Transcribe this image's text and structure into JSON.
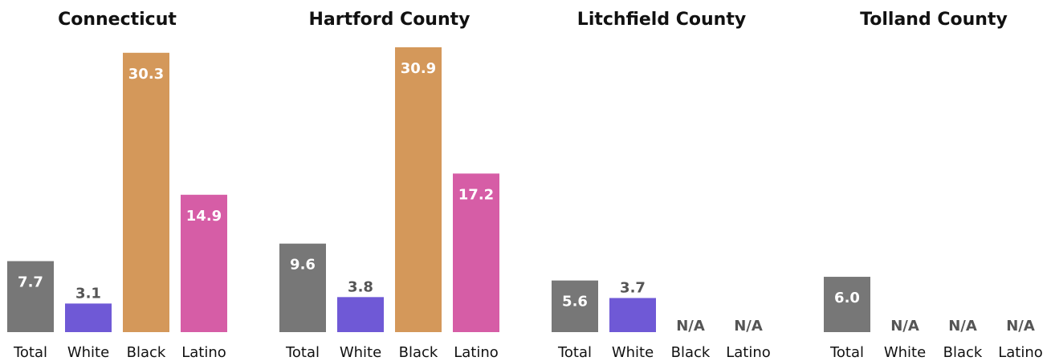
{
  "colors": {
    "Total": "#777777",
    "White": "#6f59d6",
    "Black": "#d4985a",
    "Latino": "#d65da6"
  },
  "chart_data": {
    "type": "bar",
    "categories": [
      "Total",
      "White",
      "Black",
      "Latino"
    ],
    "ylim": [
      0,
      31.5
    ],
    "panels": [
      {
        "title": "Connecticut",
        "values": [
          7.7,
          3.1,
          30.3,
          14.9
        ],
        "labels": [
          "7.7",
          "3.1",
          "30.3",
          "14.9"
        ]
      },
      {
        "title": "Hartford County",
        "values": [
          9.6,
          3.8,
          30.9,
          17.2
        ],
        "labels": [
          "9.6",
          "3.8",
          "30.9",
          "17.2"
        ]
      },
      {
        "title": "Litchfield County",
        "values": [
          5.6,
          3.7,
          null,
          null
        ],
        "labels": [
          "5.6",
          "3.7",
          "N/A",
          "N/A"
        ]
      },
      {
        "title": "Tolland County",
        "values": [
          6.0,
          null,
          null,
          null
        ],
        "labels": [
          "6.0",
          "N/A",
          "N/A",
          "N/A"
        ]
      }
    ]
  }
}
